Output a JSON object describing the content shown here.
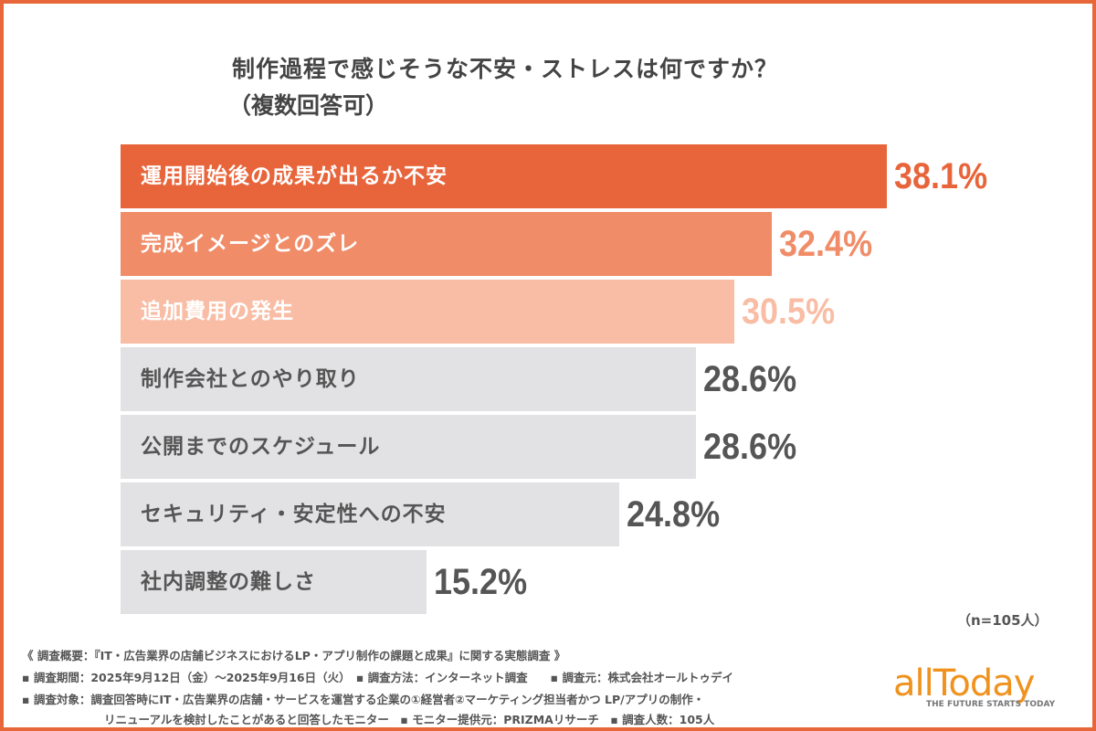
{
  "title": "制作過程で感じそうな不安・ストレスは何ですか？",
  "subtitle": "（複数回答可）",
  "chart_data": {
    "type": "bar",
    "orientation": "horizontal",
    "title": "制作過程で感じそうな不安・ストレスは何ですか？",
    "categories": [
      "運用開始後の成果が出るか不安",
      "完成イメージとのズレ",
      "追加費用の発生",
      "制作会社とのやり取り",
      "公開までのスケジュール",
      "セキュリティ・安定性への不安",
      "社内調整の難しさ"
    ],
    "values": [
      38.1,
      32.4,
      30.5,
      28.6,
      28.6,
      24.8,
      15.2
    ],
    "value_labels": [
      "38.1%",
      "32.4%",
      "30.5%",
      "28.6%",
      "28.6%",
      "24.8%",
      "15.2%"
    ],
    "bar_colors": [
      "#e8643a",
      "#f08c68",
      "#f8bda4",
      "#e2e2e4",
      "#e2e2e4",
      "#e2e2e4",
      "#e2e2e4"
    ],
    "label_colors": [
      "#ffffff",
      "#ffffff",
      "#ffffff",
      "#555555",
      "#555555",
      "#555555",
      "#555555"
    ],
    "value_colors": [
      "#e8643a",
      "#f08c68",
      "#f8bda4",
      "#555555",
      "#555555",
      "#555555",
      "#555555"
    ],
    "grid": false,
    "legend": "none"
  },
  "sample_note": "（n=105人）",
  "footer": {
    "line1": "《 調査概要：『IT・広告業界の店舗ビジネスにおけるLP・アプリ制作の課題と成果』に関する実態調査 》",
    "line2": "▪ 調査期間：2025年9月12日（金）～2025年9月16日（火）　▪ 調査方法：インターネット調査　　▪ 調査元：株式会社オールトゥデイ",
    "line3": "▪ 調査対象：調査回答時にIT・広告業界の店舗・サービスを運営する企業の①経営者②マーケティング担当者かつ LP/アプリの制作・",
    "line4": "リニューアルを検討したことがあると回答したモニター　▪ モニター提供元：PRIZMAリサーチ　▪ 調査人数：105人"
  },
  "logo": {
    "word": "allToday",
    "tagline": "THE FUTURE STARTS TODAY",
    "color": "#f0921e"
  },
  "frame_color": "#e8673a"
}
